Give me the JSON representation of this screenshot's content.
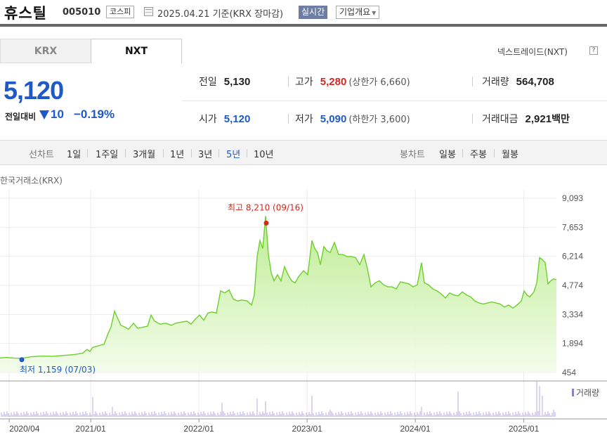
{
  "header": {
    "name": "휴스틸",
    "code": "005010",
    "market": "코스피",
    "date": "2025.04.21 기준(KRX 장마감)",
    "live": "실시간",
    "info": "기업개요"
  },
  "tabs": [
    {
      "label": "KRX"
    },
    {
      "label": "NXT"
    }
  ],
  "nxt_link": "넥스트레이드(NXT)",
  "help_icon": "?",
  "price": {
    "current": "5,120",
    "change_label": "전일대비",
    "change": "10",
    "change_pct": "−0.19%",
    "direction_icon": "down-triangle-icon",
    "color": "#1d59c8"
  },
  "quote": {
    "prev": {
      "label": "전일",
      "value": "5,130"
    },
    "high": {
      "label": "고가",
      "value": "5,280",
      "sub": "(상한가 6,660)"
    },
    "volume": {
      "label": "거래량",
      "value": "564,708"
    },
    "open": {
      "label": "시가",
      "value": "5,120"
    },
    "low": {
      "label": "저가",
      "value": "5,090",
      "sub": "(하한가 3,600)"
    },
    "amount": {
      "label": "거래대금",
      "value": "2,921",
      "unit": "백만"
    }
  },
  "period_bar": {
    "line_label": "선차트",
    "periods": [
      "1일",
      "1주일",
      "3개월",
      "1년",
      "3년",
      "5년",
      "10년"
    ],
    "selected": "5년",
    "candle_label": "봉차트",
    "candles": [
      "일봉",
      "주봉",
      "월봉"
    ]
  },
  "exchange_label": "한국거래소(KRX)",
  "colors": {
    "up": "#d7261c",
    "down": "#1d59c8",
    "area": "#6dcf2c"
  },
  "chart_data": {
    "type": "area",
    "y_ticks": [
      9093,
      7653,
      6214,
      4774,
      3334,
      1894,
      454
    ],
    "y_tick_labels": [
      "9,093",
      "7,653",
      "6,214",
      "4,774",
      "3,334",
      "1,894",
      "454"
    ],
    "ylim": [
      454,
      9093
    ],
    "x_tick_labels": [
      "2020/04",
      "2021/01",
      "2022/01",
      "2023/01",
      "2024/01",
      "2025/01"
    ],
    "x_tick_dates": [
      "2020-04",
      "2021-01",
      "2022-01",
      "2023-01",
      "2024-01",
      "2025-01"
    ],
    "high_annotation": "최고 8,210 (09/16)",
    "low_annotation": "최저 1,159 (07/03)",
    "volume_legend": "거래량",
    "series": [
      {
        "values": [
          [
            0,
            1180
          ],
          [
            10,
            1200
          ],
          [
            20,
            1170
          ],
          [
            31,
            1159
          ],
          [
            45,
            1240
          ],
          [
            60,
            1270
          ],
          [
            75,
            1260
          ],
          [
            90,
            1300
          ],
          [
            105,
            1340
          ],
          [
            118,
            1420
          ],
          [
            124,
            1600
          ],
          [
            128,
            1500
          ],
          [
            132,
            1700
          ],
          [
            140,
            1780
          ],
          [
            148,
            1850
          ],
          [
            154,
            2400
          ],
          [
            158,
            2700
          ],
          [
            163,
            3500
          ],
          [
            168,
            3100
          ],
          [
            172,
            2800
          ],
          [
            178,
            2700
          ],
          [
            183,
            2600
          ],
          [
            190,
            2900
          ],
          [
            196,
            2650
          ],
          [
            203,
            2700
          ],
          [
            210,
            2750
          ],
          [
            215,
            3300
          ],
          [
            220,
            3000
          ],
          [
            228,
            2850
          ],
          [
            236,
            2900
          ],
          [
            244,
            2800
          ],
          [
            250,
            2900
          ],
          [
            258,
            2950
          ],
          [
            266,
            3000
          ],
          [
            272,
            2850
          ],
          [
            278,
            3100
          ],
          [
            284,
            3300
          ],
          [
            290,
            3050
          ],
          [
            296,
            3400
          ],
          [
            302,
            3450
          ],
          [
            308,
            3400
          ],
          [
            314,
            4500
          ],
          [
            320,
            4400
          ],
          [
            326,
            4550
          ],
          [
            332,
            4100
          ],
          [
            338,
            4000
          ],
          [
            344,
            4050
          ],
          [
            352,
            4000
          ],
          [
            358,
            3800
          ],
          [
            362,
            4300
          ],
          [
            366,
            6200
          ],
          [
            370,
            7000
          ],
          [
            374,
            6600
          ],
          [
            378,
            8210
          ],
          [
            382,
            6300
          ],
          [
            386,
            5400
          ],
          [
            390,
            5000
          ],
          [
            395,
            5300
          ],
          [
            400,
            5000
          ],
          [
            405,
            5700
          ],
          [
            410,
            5300
          ],
          [
            415,
            5000
          ],
          [
            420,
            4900
          ],
          [
            425,
            5200
          ],
          [
            432,
            5500
          ],
          [
            438,
            5300
          ],
          [
            444,
            7000
          ],
          [
            448,
            6600
          ],
          [
            452,
            6400
          ],
          [
            456,
            5800
          ],
          [
            461,
            6700
          ],
          [
            465,
            6500
          ],
          [
            470,
            6400
          ],
          [
            476,
            6900
          ],
          [
            482,
            6300
          ],
          [
            488,
            6300
          ],
          [
            494,
            6200
          ],
          [
            500,
            6200
          ],
          [
            506,
            6150
          ],
          [
            512,
            5800
          ],
          [
            518,
            6300
          ],
          [
            523,
            5600
          ],
          [
            528,
            4700
          ],
          [
            534,
            4900
          ],
          [
            540,
            5000
          ],
          [
            546,
            4800
          ],
          [
            552,
            4700
          ],
          [
            558,
            4700
          ],
          [
            564,
            4600
          ],
          [
            570,
            4950
          ],
          [
            576,
            4900
          ],
          [
            582,
            4850
          ],
          [
            588,
            4700
          ],
          [
            594,
            4800
          ],
          [
            600,
            5900
          ],
          [
            604,
            4900
          ],
          [
            610,
            4800
          ],
          [
            616,
            4600
          ],
          [
            622,
            4500
          ],
          [
            628,
            4350
          ],
          [
            634,
            4150
          ],
          [
            640,
            4400
          ],
          [
            646,
            4300
          ],
          [
            652,
            4250
          ],
          [
            658,
            4450
          ],
          [
            664,
            4300
          ],
          [
            670,
            4200
          ],
          [
            676,
            4000
          ],
          [
            682,
            3900
          ],
          [
            688,
            3850
          ],
          [
            694,
            3900
          ],
          [
            700,
            3950
          ],
          [
            706,
            3900
          ],
          [
            712,
            3850
          ],
          [
            718,
            3700
          ],
          [
            724,
            3800
          ],
          [
            730,
            3650
          ],
          [
            736,
            3800
          ],
          [
            742,
            4000
          ],
          [
            746,
            4500
          ],
          [
            750,
            4300
          ],
          [
            754,
            4200
          ],
          [
            760,
            4450
          ],
          [
            764,
            4900
          ],
          [
            768,
            6150
          ],
          [
            772,
            6050
          ],
          [
            776,
            5900
          ],
          [
            780,
            4850
          ],
          [
            784,
            5000
          ],
          [
            788,
            5100
          ],
          [
            792,
            5050
          ]
        ]
      }
    ]
  }
}
